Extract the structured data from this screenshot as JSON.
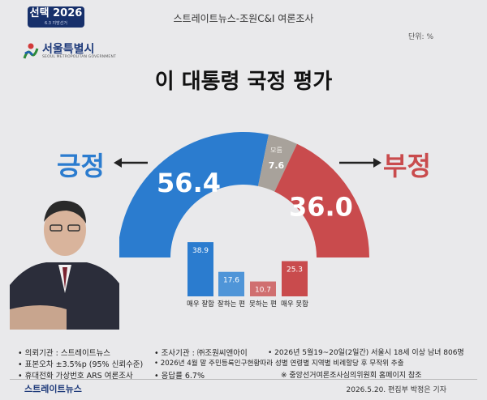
{
  "badge": {
    "text": "선택 2026",
    "sub": "6.3 지방선거"
  },
  "header_title": "스트레이트뉴스-조원C&I 여론조사",
  "unit_note": "단위: %",
  "region": {
    "name": "서울특별시",
    "sub": "SEOUL METROPOLITAN GOVERNMENT"
  },
  "main_title": "이 대통령 국정 평가",
  "chart_data": [
    {
      "type": "pie",
      "title": "이 대통령 국정 평가",
      "labels": [
        "긍정",
        "모름",
        "부정"
      ],
      "values": [
        56.4,
        7.6,
        36.0
      ],
      "colors": [
        "#2b7ccf",
        "#a8a29b",
        "#c94b4d"
      ],
      "annotations": {
        "unknown_label": "모름"
      }
    },
    {
      "type": "bar",
      "categories": [
        "매우 잘함",
        "잘하는 편",
        "못하는 편",
        "매우 못함"
      ],
      "values": [
        38.9,
        17.6,
        10.7,
        25.3
      ],
      "colors": [
        "#2b7ccf",
        "#4f95d8",
        "#d06f70",
        "#c94b4d"
      ]
    }
  ],
  "words": {
    "positive": "긍정",
    "negative": "부정"
  },
  "footer": {
    "col1": [
      "• 의뢰기관 : 스트레이트뉴스",
      "• 표본오차 ±3.5%p (95% 신뢰수준)",
      "• 휴대전화 가상번호 ARS 여론조사"
    ],
    "col2": [
      "• 조사기관 : ㈜조원씨앤아이",
      "• 2026년 4월 말 주민등록인구현황따라 성별 연령별 지역별 비례할당 후 무작위 추출",
      "• 응답률 6.7%"
    ],
    "col3": [
      "• 2026년 5월19~20일(2일간) 서울시 18세 이상 남녀 806명",
      "※ 중앙선거여론조사심의위원회 홈페이지 참조"
    ]
  },
  "brand": "스트레이트뉴스",
  "credit": "2026.5.20. 편집부 박정은 기자"
}
